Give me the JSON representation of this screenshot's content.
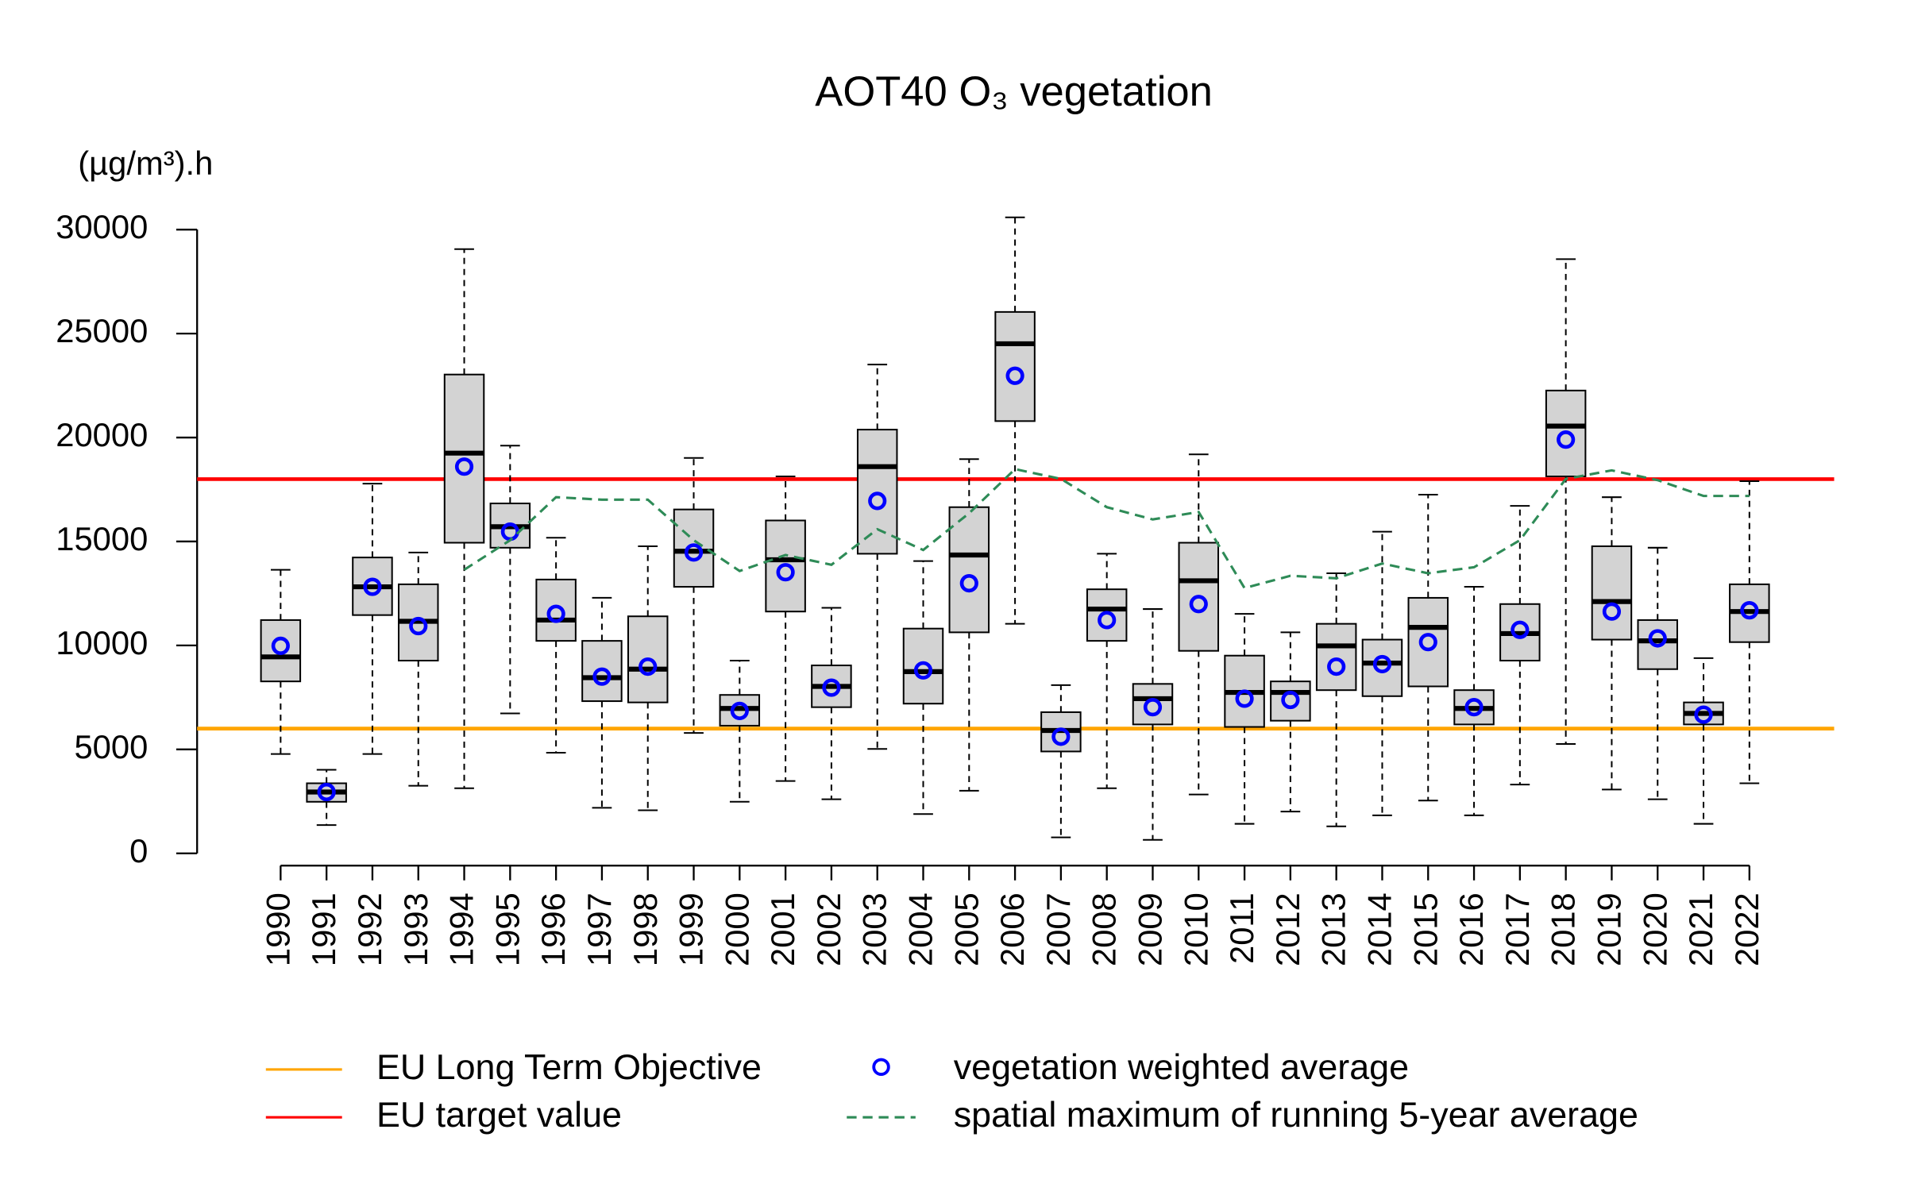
{
  "chart_data": {
    "type": "box",
    "title": "AOT40 O₃ vegetation",
    "y_label": "(µg/m³).h",
    "categories": [
      "1990",
      "1991",
      "1992",
      "1993",
      "1994",
      "1995",
      "1996",
      "1997",
      "1998",
      "1999",
      "2000",
      "2001",
      "2002",
      "2003",
      "2004",
      "2005",
      "2006",
      "2007",
      "2008",
      "2009",
      "2010",
      "2011",
      "2012",
      "2013",
      "2014",
      "2015",
      "2016",
      "2017",
      "2018",
      "2019",
      "2020",
      "2021",
      "2022"
    ],
    "box_color": "#d3d3d3",
    "whisker_low": [
      4780,
      1360,
      4780,
      3250,
      3130,
      6730,
      4840,
      2190,
      2070,
      5790,
      2480,
      3480,
      2600,
      5020,
      1890,
      3010,
      11040,
      770,
      3130,
      650,
      2830,
      1420,
      2010,
      1300,
      1830,
      2540,
      1830,
      3310,
      5260,
      3070,
      2600,
      1420,
      3370
    ],
    "q1": [
      8270,
      2480,
      11460,
      9270,
      14940,
      14700,
      10220,
      7320,
      7260,
      12820,
      6140,
      11630,
      7030,
      14410,
      7200,
      10630,
      20790,
      4900,
      10220,
      6200,
      9740,
      6080,
      6380,
      7850,
      7560,
      8030,
      6200,
      9270,
      18130,
      10280,
      8860,
      6200,
      10160
    ],
    "median": [
      9450,
      2950,
      12820,
      11160,
      19250,
      15710,
      11220,
      8450,
      8860,
      14530,
      6970,
      14120,
      8030,
      18600,
      8740,
      14350,
      24510,
      5910,
      11750,
      7440,
      13110,
      7740,
      7740,
      9980,
      9150,
      10870,
      6970,
      10570,
      20550,
      12110,
      10220,
      6730,
      11630
    ],
    "q3": [
      11220,
      3370,
      14230,
      12940,
      23030,
      16830,
      13170,
      10220,
      11400,
      16540,
      7620,
      16010,
      9040,
      20380,
      10810,
      16650,
      26040,
      6790,
      12700,
      8150,
      14940,
      9510,
      8270,
      11040,
      10280,
      12290,
      7850,
      11990,
      22260,
      14770,
      11220,
      7260,
      12940
    ],
    "whisker_high": [
      13640,
      4020,
      17780,
      14470,
      29060,
      19610,
      15180,
      12290,
      14770,
      19020,
      9270,
      18130,
      11810,
      23510,
      14060,
      18960,
      30590,
      8090,
      14410,
      11750,
      19190,
      11520,
      10630,
      13470,
      15470,
      17250,
      12820,
      16710,
      28580,
      17130,
      14700,
      9390,
      17900
    ],
    "series": [
      {
        "name": "vegetation weighted average",
        "color": "#0000ff",
        "values": [
          9980,
          2950,
          12820,
          10930,
          18600,
          15470,
          11520,
          8500,
          8980,
          14470,
          6850,
          13520,
          7970,
          16950,
          8800,
          12990,
          22970,
          5610,
          11220,
          7030,
          11990,
          7440,
          7380,
          8980,
          9100,
          10160,
          7030,
          10750,
          19900,
          11630,
          10340,
          6670,
          11690
        ]
      },
      {
        "name": "spatial maximum of running 5-year average",
        "color": "#2e8b57",
        "values": [
          null,
          null,
          null,
          null,
          13640,
          15060,
          17130,
          17010,
          17010,
          15060,
          13580,
          14350,
          13880,
          15590,
          14590,
          16360,
          18480,
          18010,
          16650,
          16060,
          16420,
          12760,
          13350,
          13230,
          13940,
          13470,
          13760,
          15060,
          18010,
          18420,
          17950,
          17190,
          17190
        ]
      }
    ],
    "reference_lines": [
      {
        "name": "EU Long Term Objective",
        "color": "#ffa500",
        "value": 6000
      },
      {
        "name": "EU target value",
        "color": "#ff0000",
        "value": 18000
      }
    ],
    "ylim": [
      0,
      30000
    ],
    "yticks": [
      0,
      5000,
      10000,
      15000,
      20000,
      25000,
      30000
    ]
  }
}
